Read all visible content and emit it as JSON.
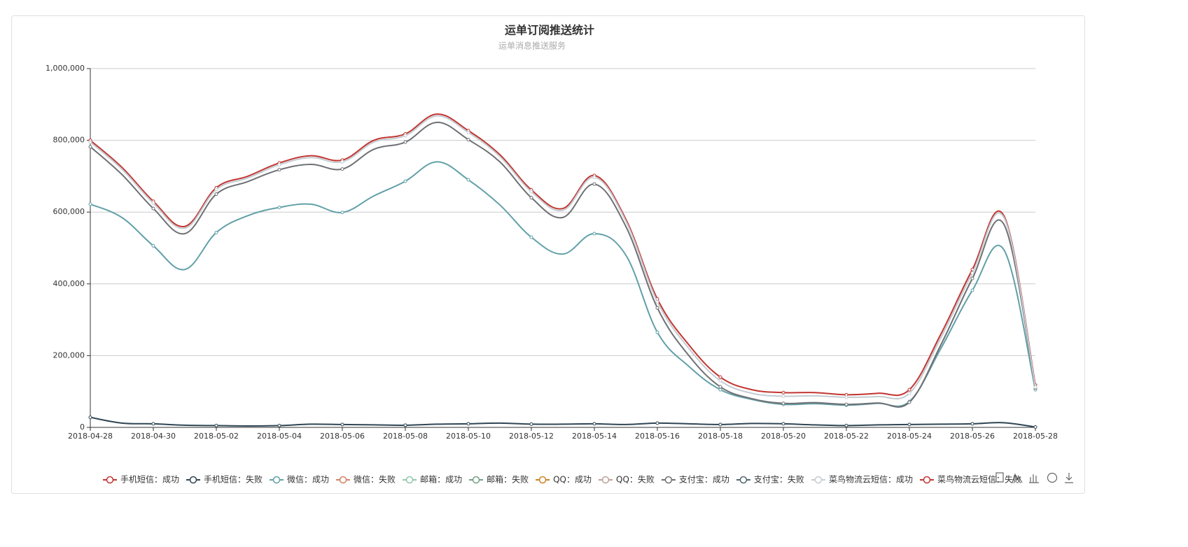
{
  "chart_data": {
    "type": "line",
    "title": "运单订阅推送统计",
    "subtitle": "运单消息推送服务",
    "categories": [
      "2018-04-28",
      null,
      "2018-04-30",
      null,
      "2018-05-02",
      null,
      "2018-05-04",
      null,
      "2018-05-06",
      null,
      "2018-05-08",
      null,
      "2018-05-10",
      null,
      "2018-05-12",
      null,
      "2018-05-14",
      null,
      "2018-05-16",
      null,
      "2018-05-18",
      null,
      "2018-05-20",
      null,
      "2018-05-22",
      null,
      "2018-05-24",
      null,
      "2018-05-26",
      null,
      "2018-05-28"
    ],
    "ylim": [
      0,
      1000000
    ],
    "yticks": [
      0,
      {
        "value": 200000,
        "label": "200,000"
      },
      {
        "value": 400000,
        "label": "400,000"
      },
      {
        "value": 600000,
        "label": "600,000"
      },
      {
        "value": 800000,
        "label": "800,000"
      },
      {
        "value": 1000000,
        "label": "1,000,000"
      }
    ],
    "grid": true,
    "legend_position": "bottom",
    "series": [
      {
        "name": "手机短信：成功",
        "color": "#c23531",
        "values": [
          800000,
          725000,
          630000,
          560000,
          668000,
          700000,
          737000,
          757000,
          745000,
          800000,
          818000,
          873000,
          827000,
          760000,
          662000,
          610000,
          702000,
          580000,
          358000,
          230000,
          140000,
          105000,
          97000,
          97000,
          91000,
          95000,
          105000,
          260000,
          440000,
          590000,
          118000
        ]
      },
      {
        "name": "手机短信：失败",
        "color": "#2f4554",
        "values": [
          28000,
          12000,
          10000,
          6000,
          5000,
          4000,
          5000,
          9000,
          8000,
          7000,
          6000,
          9000,
          10000,
          12000,
          9000,
          9000,
          10000,
          8000,
          12000,
          10000,
          8000,
          11000,
          10000,
          7000,
          5000,
          7000,
          8000,
          9000,
          10000,
          13000,
          1000
        ]
      },
      {
        "name": "微信：成功",
        "color": "#61a0a8",
        "values": [
          622000,
          585000,
          506000,
          440000,
          543000,
          590000,
          613000,
          622000,
          599000,
          645000,
          686000,
          740000,
          690000,
          620000,
          530000,
          483000,
          540000,
          480000,
          265000,
          170000,
          105000,
          78000,
          64000,
          66000,
          62000,
          67000,
          72000,
          220000,
          382000,
          495000,
          105000
        ]
      },
      {
        "name": "微信：失败",
        "color": "#d48265",
        "values": [
          null,
          null,
          null,
          null,
          null,
          null,
          null,
          null,
          null,
          null,
          null,
          null,
          null,
          null,
          null,
          null,
          null,
          null,
          null,
          null,
          null,
          null,
          null,
          null,
          null,
          null,
          null,
          null,
          null,
          null,
          null
        ]
      },
      {
        "name": "邮箱：成功",
        "color": "#91c7ae",
        "values": [
          null,
          null,
          null,
          null,
          null,
          null,
          null,
          null,
          null,
          null,
          null,
          null,
          null,
          null,
          null,
          null,
          null,
          null,
          null,
          null,
          null,
          null,
          null,
          null,
          null,
          null,
          null,
          null,
          null,
          null,
          null
        ]
      },
      {
        "name": "邮箱：失败",
        "color": "#749f83",
        "values": [
          null,
          null,
          null,
          null,
          null,
          null,
          null,
          null,
          null,
          null,
          null,
          null,
          null,
          null,
          null,
          null,
          null,
          null,
          null,
          null,
          null,
          null,
          null,
          null,
          null,
          null,
          null,
          null,
          null,
          null,
          null
        ]
      },
      {
        "name": "QQ：成功",
        "color": "#ca8622",
        "values": [
          null,
          null,
          null,
          null,
          null,
          null,
          null,
          null,
          null,
          null,
          null,
          null,
          null,
          null,
          null,
          null,
          null,
          null,
          null,
          null,
          null,
          null,
          null,
          null,
          null,
          null,
          null,
          null,
          null,
          null,
          null
        ]
      },
      {
        "name": "QQ：失败",
        "color": "#bda29a",
        "values": [
          null,
          null,
          null,
          null,
          null,
          null,
          null,
          null,
          null,
          null,
          null,
          null,
          null,
          null,
          null,
          null,
          null,
          null,
          null,
          null,
          null,
          null,
          null,
          null,
          null,
          null,
          null,
          null,
          null,
          null,
          null
        ]
      },
      {
        "name": "支付宝：成功",
        "color": "#6e7074",
        "values": [
          782000,
          705000,
          610000,
          540000,
          650000,
          685000,
          718000,
          733000,
          720000,
          775000,
          795000,
          850000,
          802000,
          740000,
          640000,
          585000,
          678000,
          560000,
          333000,
          200000,
          113000,
          80000,
          67000,
          69000,
          64000,
          68000,
          70000,
          230000,
          415000,
          566000,
          110000
        ]
      },
      {
        "name": "支付宝：失败",
        "color": "#546570",
        "values": [
          null,
          null,
          null,
          null,
          null,
          null,
          null,
          null,
          null,
          null,
          null,
          null,
          null,
          null,
          null,
          null,
          null,
          null,
          null,
          null,
          null,
          null,
          null,
          null,
          null,
          null,
          null,
          null,
          null,
          null,
          null
        ]
      },
      {
        "name": "菜鸟物流云短信：成功",
        "color": "#c4ccd3",
        "values": [
          795000,
          720000,
          625000,
          555000,
          663000,
          695000,
          732000,
          752000,
          740000,
          795000,
          813000,
          868000,
          822000,
          755000,
          657000,
          605000,
          697000,
          575000,
          350000,
          220000,
          130000,
          95000,
          87000,
          88000,
          84000,
          86000,
          95000,
          250000,
          430000,
          585000,
          112000
        ]
      },
      {
        "name": "菜鸟物流云短信：失败",
        "color": "#c23531",
        "values": [
          null,
          null,
          null,
          null,
          null,
          null,
          null,
          null,
          null,
          null,
          null,
          null,
          null,
          null,
          null,
          null,
          null,
          null,
          null,
          null,
          null,
          null,
          null,
          null,
          null,
          null,
          null,
          null,
          null,
          null,
          null
        ]
      }
    ]
  }
}
